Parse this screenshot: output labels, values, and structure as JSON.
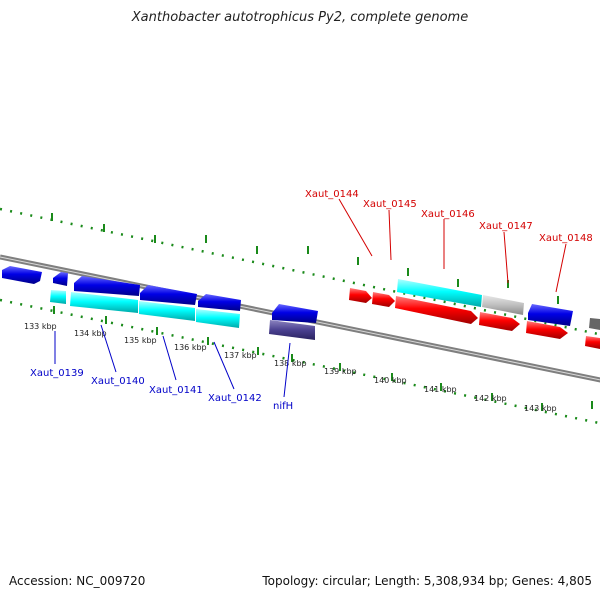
{
  "title": "Xanthobacter autotrophicus Py2, complete genome",
  "footer": {
    "accession": "Accession: NC_009720",
    "summary": "Topology: circular; Length: 5,308,934 bp; Genes: 4,805"
  },
  "ticks": [
    "133 kbp",
    "134 kbp",
    "135 kbp",
    "136 kbp",
    "137 kbp",
    "138 kbp",
    "139 kbp",
    "140 kbp",
    "141 kbp",
    "142 kbp",
    "143 kbp"
  ],
  "labels_bottom": [
    "Xaut_0139",
    "Xaut_0140",
    "Xaut_0141",
    "Xaut_0142",
    "nifH"
  ],
  "labels_top": [
    "Xaut_0144",
    "Xaut_0145",
    "Xaut_0146",
    "Xaut_0147",
    "Xaut_0148"
  ],
  "colors": {
    "forward_cds": "#ff0000",
    "reverse_cds": "#0000e6",
    "gene": "#00ffff",
    "pseudo": "#bfbfbf",
    "nif": "#4a4090",
    "tick": "#1a8a1a",
    "backbone": "#7f7f7f",
    "label_forward": "#d40000",
    "label_reverse": "#0000c8"
  }
}
